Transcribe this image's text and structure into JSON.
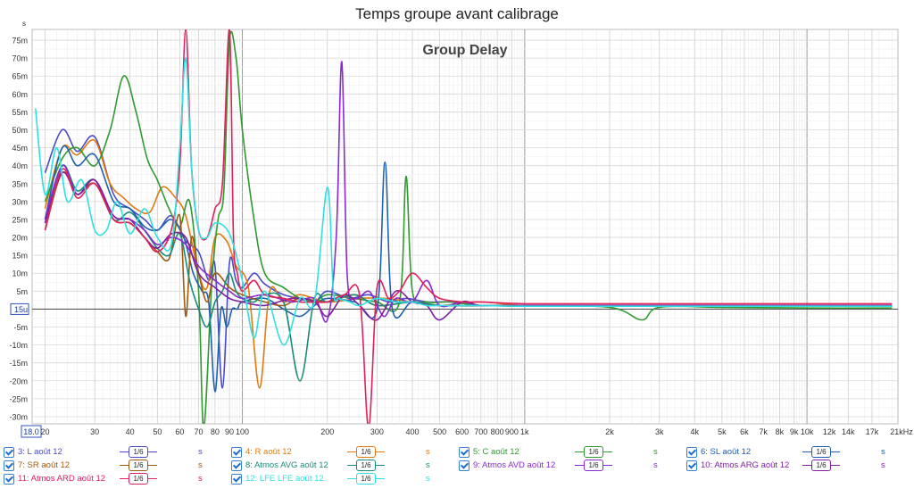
{
  "title": "Temps groupe avant calibrage",
  "chart_data": {
    "type": "line",
    "title": "Temps groupe avant calibrage",
    "plot_label": "Group Delay",
    "y_unit_label": "s",
    "x_unit_label": "21kHz",
    "x_scale": "log",
    "xlim": [
      18,
      21000
    ],
    "ylim": [
      -32,
      78
    ],
    "y_ticks": [
      75,
      70,
      65,
      60,
      55,
      50,
      45,
      40,
      35,
      30,
      25,
      20,
      15,
      10,
      5,
      0,
      -5,
      -10,
      -15,
      -20,
      -25,
      -30
    ],
    "y_tick_labels": [
      "75m",
      "70m",
      "65m",
      "60m",
      "55m",
      "50m",
      "45m",
      "40m",
      "35m",
      "30m",
      "25m",
      "20m",
      "15m",
      "10m",
      "5m",
      "15u",
      "-5m",
      "-10m",
      "-15m",
      "-20m",
      "-25m",
      "-30m"
    ],
    "x_ticks": [
      20,
      30,
      40,
      50,
      60,
      70,
      80,
      90,
      100,
      200,
      300,
      400,
      500,
      600,
      700,
      800,
      900,
      1000,
      2000,
      3000,
      4000,
      5000,
      6000,
      7000,
      8000,
      9000,
      10000,
      12000,
      14000,
      17000
    ],
    "x_tick_labels": [
      "20",
      "30",
      "40",
      "50",
      "60",
      "70",
      "80",
      "90",
      "100",
      "200",
      "300",
      "400",
      "500",
      "600",
      "700",
      "800",
      "900",
      "1k",
      "2k",
      "3k",
      "4k",
      "5k",
      "6k",
      "7k",
      "8k",
      "9k",
      "10k",
      "12k",
      "14k",
      "17k"
    ],
    "x_start_label": "18.0",
    "grid": true,
    "legend_placement": "bottom",
    "series": [
      {
        "name": "3: L août 12",
        "color": "#4a4ac8",
        "x": [
          20,
          23,
          26,
          30,
          35,
          40,
          45,
          50,
          56,
          63,
          70,
          76,
          80,
          85,
          90,
          95,
          100,
          110,
          120,
          140,
          160,
          180,
          200,
          240,
          280,
          330,
          380,
          450,
          550,
          700,
          1000,
          2000,
          5000,
          10000,
          20000
        ],
        "y": [
          38,
          50,
          44,
          48,
          32,
          28,
          25,
          22,
          26,
          19,
          16,
          8,
          12,
          -22,
          13,
          8,
          6,
          10,
          7,
          4,
          3,
          2,
          5,
          3,
          4,
          2,
          3,
          2,
          2,
          1,
          1,
          0.8,
          0.8,
          0.8,
          0.8
        ]
      },
      {
        "name": "4: R août 12",
        "color": "#e07a10",
        "x": [
          20,
          23,
          26,
          30,
          34,
          38,
          42,
          47,
          52,
          58,
          63,
          70,
          75,
          80,
          88,
          95,
          105,
          115,
          125,
          140,
          160,
          200,
          260,
          320,
          400,
          500,
          700,
          1000,
          2000,
          5000,
          10000,
          20000
        ],
        "y": [
          28,
          45,
          43,
          47,
          35,
          31,
          28,
          27,
          34,
          31,
          26,
          10,
          6,
          20,
          19,
          12,
          6,
          -22,
          5,
          2,
          4,
          2,
          3,
          3,
          2,
          1,
          2,
          1,
          1,
          1,
          1,
          1
        ]
      },
      {
        "name": "5: C août 12",
        "color": "#2f9a2f",
        "x": [
          20,
          23,
          26,
          30,
          34,
          38,
          42,
          46,
          50,
          55,
          60,
          65,
          70,
          73,
          78,
          82,
          86,
          90,
          95,
          100,
          110,
          120,
          140,
          160,
          180,
          200,
          250,
          300,
          360,
          380,
          400,
          450,
          550,
          700,
          1000,
          2000,
          2600,
          3000,
          5000,
          10000,
          20000
        ],
        "y": [
          30,
          42,
          45,
          40,
          50,
          65,
          55,
          42,
          36,
          28,
          23,
          30,
          5,
          -33,
          8,
          25,
          33,
          75,
          70,
          50,
          25,
          10,
          6,
          3,
          2,
          4,
          3,
          2,
          2,
          37,
          5,
          2,
          2,
          1,
          1,
          0.5,
          -3,
          0.5,
          0.5,
          0.3,
          0.3
        ]
      },
      {
        "name": "6: SL août 12",
        "color": "#2060b0",
        "x": [
          20,
          23,
          26,
          30,
          35,
          40,
          45,
          50,
          56,
          62,
          67,
          72,
          76,
          80,
          84,
          88,
          92,
          96,
          100,
          120,
          140,
          160,
          180,
          200,
          250,
          300,
          320,
          340,
          400,
          500,
          700,
          1000,
          2000,
          5000,
          10000,
          20000
        ],
        "y": [
          25,
          45,
          40,
          43,
          30,
          28,
          23,
          22,
          25,
          20,
          10,
          5,
          2,
          -23,
          0,
          -5,
          0,
          0,
          2,
          3,
          0,
          -2,
          1,
          3,
          2,
          0,
          41,
          0,
          2,
          1,
          1,
          1,
          1,
          1,
          0.8,
          0.8
        ]
      },
      {
        "name": "7: SR août 12",
        "color": "#a05a10",
        "x": [
          20,
          23,
          26,
          30,
          35,
          40,
          45,
          50,
          55,
          60,
          63,
          66,
          70,
          75,
          80,
          90,
          100,
          120,
          140,
          160,
          200,
          250,
          300,
          400,
          500,
          700,
          1000,
          2000,
          5000,
          10000,
          20000
        ],
        "y": [
          22,
          38,
          32,
          35,
          25,
          24,
          20,
          16,
          14,
          26,
          -2,
          20,
          10,
          2,
          10,
          6,
          4,
          2,
          1,
          3,
          2,
          4,
          1,
          2,
          1,
          1,
          0.8,
          0.8,
          0.8,
          0.8,
          0.8
        ]
      },
      {
        "name": "8: Atmos AVG août 12",
        "color": "#1a8a7a",
        "x": [
          20,
          23,
          26,
          30,
          35,
          40,
          45,
          50,
          55,
          60,
          65,
          70,
          75,
          80,
          85,
          90,
          95,
          100,
          110,
          120,
          140,
          160,
          180,
          200,
          250,
          300,
          400,
          500,
          700,
          1000,
          2000,
          5000,
          10000,
          20000
        ],
        "y": [
          24,
          40,
          33,
          36,
          25,
          27,
          22,
          17,
          15,
          21,
          8,
          0,
          -5,
          2,
          5,
          10,
          5,
          3,
          2,
          4,
          2,
          -20,
          3,
          2,
          4,
          1,
          2,
          1,
          1,
          0.8,
          0.8,
          0.8,
          0.8,
          0.8
        ]
      },
      {
        "name": "9: Atmos AVD août 12",
        "color": "#8a2ad0",
        "x": [
          20,
          23,
          26,
          30,
          35,
          40,
          45,
          50,
          56,
          63,
          70,
          80,
          90,
          100,
          120,
          150,
          180,
          200,
          215,
          225,
          235,
          250,
          280,
          300,
          320,
          350,
          400,
          450,
          500,
          600,
          700,
          1000,
          2000,
          5000,
          10000,
          20000
        ],
        "y": [
          25,
          40,
          32,
          36,
          26,
          25,
          22,
          18,
          20,
          18,
          12,
          8,
          5,
          3,
          4,
          2,
          3,
          -3,
          20,
          69,
          10,
          3,
          5,
          1,
          -2,
          3,
          2,
          8,
          1,
          2,
          1,
          1,
          1,
          1,
          1,
          1
        ]
      },
      {
        "name": "10: Atmos ARG août 12",
        "color": "#8020a0",
        "x": [
          20,
          23,
          26,
          30,
          35,
          40,
          45,
          50,
          56,
          63,
          70,
          80,
          90,
          100,
          120,
          150,
          180,
          200,
          230,
          260,
          300,
          350,
          400,
          450,
          500,
          600,
          700,
          1000,
          2000,
          5000,
          10000,
          20000
        ],
        "y": [
          24,
          38,
          32,
          36,
          26,
          25,
          20,
          17,
          21,
          20,
          10,
          6,
          3,
          2,
          1,
          3,
          2,
          -2,
          4,
          1,
          -3,
          5,
          2,
          1,
          -3,
          2,
          1,
          1,
          1,
          1,
          1,
          1
        ]
      },
      {
        "name": "11: Atmos ARD août 12",
        "color": "#e0205a",
        "x": [
          20,
          23,
          26,
          30,
          35,
          40,
          45,
          50,
          56,
          60,
          63,
          66,
          70,
          75,
          80,
          85,
          90,
          93,
          96,
          100,
          110,
          120,
          140,
          160,
          180,
          200,
          230,
          260,
          280,
          300,
          330,
          360,
          400,
          450,
          500,
          600,
          700,
          1000,
          2000,
          5000,
          10000,
          20000
        ],
        "y": [
          22,
          39,
          31,
          35,
          25,
          24,
          20,
          16,
          22,
          40,
          78,
          40,
          22,
          20,
          28,
          35,
          78,
          20,
          10,
          5,
          8,
          4,
          3,
          2,
          2,
          2,
          4,
          4,
          -33,
          6,
          3,
          5,
          10,
          6,
          3,
          2,
          2,
          1.5,
          1.5,
          1.5,
          1.5,
          1.5
        ]
      },
      {
        "name": "12: LFE LFE août 12",
        "color": "#30e0e0",
        "x": [
          18.5,
          20,
          22,
          24,
          27,
          30,
          33,
          36,
          40,
          45,
          50,
          56,
          60,
          63,
          66,
          70,
          75,
          80,
          90,
          100,
          110,
          120,
          140,
          160,
          180,
          200,
          210,
          220,
          240,
          260,
          300,
          350,
          400,
          450,
          500,
          600,
          700,
          1000,
          2000,
          5000,
          10000,
          20000
        ],
        "y": [
          56,
          32,
          45,
          30,
          36,
          22,
          22,
          30,
          21,
          28,
          20,
          18,
          45,
          70,
          40,
          22,
          20,
          24,
          21,
          8,
          -8,
          5,
          -10,
          3,
          2,
          34,
          5,
          3,
          2,
          1,
          3,
          2,
          2,
          1,
          1,
          1,
          1,
          0.8,
          0.8,
          0.8,
          0.8,
          0.8
        ]
      }
    ]
  },
  "legend": {
    "smoothing_label": "1/6",
    "unit": "s"
  }
}
